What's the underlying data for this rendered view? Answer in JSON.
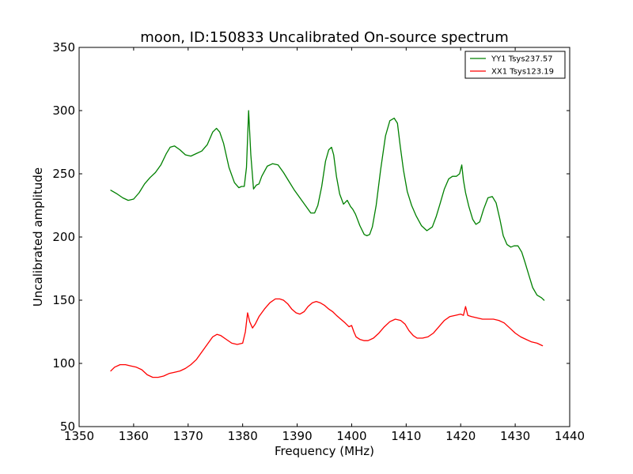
{
  "chart_data": {
    "type": "line",
    "title": "moon, ID:150833 Uncalibrated On-source spectrum",
    "xlabel": "Frequency (MHz)",
    "ylabel": "Uncalibrated amplitude",
    "xlim": [
      1350,
      1440
    ],
    "ylim": [
      50,
      350
    ],
    "xticks": [
      1350,
      1360,
      1370,
      1380,
      1390,
      1400,
      1410,
      1420,
      1430,
      1440
    ],
    "yticks": [
      50,
      100,
      150,
      200,
      250,
      300,
      350
    ],
    "grid": false,
    "legend_position": "top-right",
    "series": [
      {
        "name": "YY1 Tsys237.57",
        "color": "#008000",
        "x": [
          1355.8,
          1357,
          1358,
          1359,
          1360,
          1361,
          1362,
          1363,
          1364,
          1365,
          1366,
          1366.7,
          1367.5,
          1368.5,
          1369.5,
          1370.5,
          1371.5,
          1372.5,
          1373.5,
          1374.5,
          1375.2,
          1375.8,
          1376.5,
          1377.5,
          1378.5,
          1379.3,
          1379.8,
          1380.3,
          1380.7,
          1381.1,
          1381.5,
          1382,
          1382.5,
          1383,
          1383.5,
          1384.5,
          1385.5,
          1386.5,
          1387.5,
          1388.5,
          1389.5,
          1390.5,
          1391.5,
          1392.5,
          1393.2,
          1393.8,
          1394.5,
          1395.2,
          1395.8,
          1396.3,
          1396.7,
          1397.2,
          1397.8,
          1398.5,
          1399.2,
          1399.8,
          1400.2,
          1400.7,
          1401.5,
          1402.3,
          1402.8,
          1403.3,
          1403.8,
          1404.5,
          1405.3,
          1406.2,
          1407,
          1407.8,
          1408.4,
          1408.9,
          1409.5,
          1410.2,
          1411,
          1411.8,
          1412.8,
          1413.8,
          1414.8,
          1415.5,
          1416.2,
          1417,
          1417.8,
          1418.5,
          1419.2,
          1419.8,
          1420.2,
          1420.5,
          1420.9,
          1421.5,
          1422.2,
          1422.8,
          1423.5,
          1424.2,
          1425,
          1425.8,
          1426.5,
          1427.2,
          1427.8,
          1428.5,
          1429.2,
          1429.8,
          1430.5,
          1431.2,
          1431.8,
          1432.5,
          1433.2,
          1434,
          1434.8,
          1435.3
        ],
        "y": [
          237,
          234,
          231,
          229,
          230,
          235,
          242,
          247,
          251,
          257,
          266,
          271,
          272,
          269,
          265,
          264,
          266,
          268,
          273,
          283,
          286,
          283,
          274,
          255,
          243,
          239,
          240,
          240,
          255,
          300,
          265,
          238,
          241,
          242,
          248,
          256,
          258,
          257,
          251,
          244,
          237,
          231,
          225,
          219,
          219,
          225,
          240,
          260,
          269,
          271,
          265,
          248,
          234,
          226,
          229,
          224,
          222,
          218,
          209,
          202,
          201,
          202,
          208,
          225,
          253,
          280,
          292,
          294,
          290,
          272,
          253,
          236,
          225,
          217,
          209,
          205,
          208,
          216,
          226,
          238,
          246,
          248,
          248,
          250,
          257,
          245,
          235,
          224,
          214,
          210,
          212,
          222,
          231,
          232,
          227,
          214,
          201,
          194,
          192,
          193,
          193,
          188,
          180,
          170,
          160,
          154,
          152,
          150
        ],
        "note": "traced curve"
      },
      {
        "name": "XX1 Tsys123.19",
        "color": "#ff0000",
        "x": [
          1355.8,
          1356.5,
          1357.5,
          1358.5,
          1359.5,
          1360.5,
          1361.5,
          1362.5,
          1363.5,
          1364.5,
          1365.5,
          1366.5,
          1367.5,
          1368.5,
          1369.5,
          1370.5,
          1371.5,
          1372.5,
          1373.5,
          1374.5,
          1375.3,
          1376,
          1377,
          1378,
          1379,
          1380,
          1380.5,
          1380.9,
          1381.3,
          1381.8,
          1382.3,
          1383,
          1384,
          1385,
          1386,
          1386.8,
          1387.5,
          1388.3,
          1389,
          1389.8,
          1390.5,
          1391.3,
          1392,
          1392.8,
          1393.5,
          1394.2,
          1395,
          1395.8,
          1396.5,
          1397.2,
          1398,
          1398.8,
          1399.5,
          1400,
          1400.4,
          1400.8,
          1401.5,
          1402.3,
          1403,
          1404,
          1405,
          1406,
          1407,
          1408,
          1409,
          1409.8,
          1410.5,
          1411.3,
          1412,
          1413,
          1414,
          1415,
          1416,
          1417,
          1418,
          1419,
          1420,
          1420.5,
          1420.9,
          1421.3,
          1422,
          1423,
          1424,
          1425,
          1426,
          1427,
          1428,
          1429,
          1430,
          1431,
          1432,
          1433,
          1434,
          1435
        ],
        "y": [
          94,
          97,
          99,
          99,
          98,
          97,
          95,
          91,
          89,
          89,
          90,
          92,
          93,
          94,
          96,
          99,
          103,
          109,
          115,
          121,
          123,
          122,
          119,
          116,
          115,
          116,
          125,
          140,
          133,
          128,
          131,
          137,
          143,
          148,
          151,
          151,
          150,
          147,
          143,
          140,
          139,
          141,
          145,
          148,
          149,
          148,
          146,
          143,
          141,
          138,
          135,
          132,
          129,
          130,
          125,
          121,
          119,
          118,
          118,
          120,
          124,
          129,
          133,
          135,
          134,
          131,
          126,
          122,
          120,
          120,
          121,
          124,
          129,
          134,
          137,
          138,
          139,
          138,
          145,
          138,
          137,
          136,
          135,
          135,
          135,
          134,
          132,
          128,
          124,
          121,
          119,
          117,
          116,
          114
        ]
      }
    ]
  }
}
